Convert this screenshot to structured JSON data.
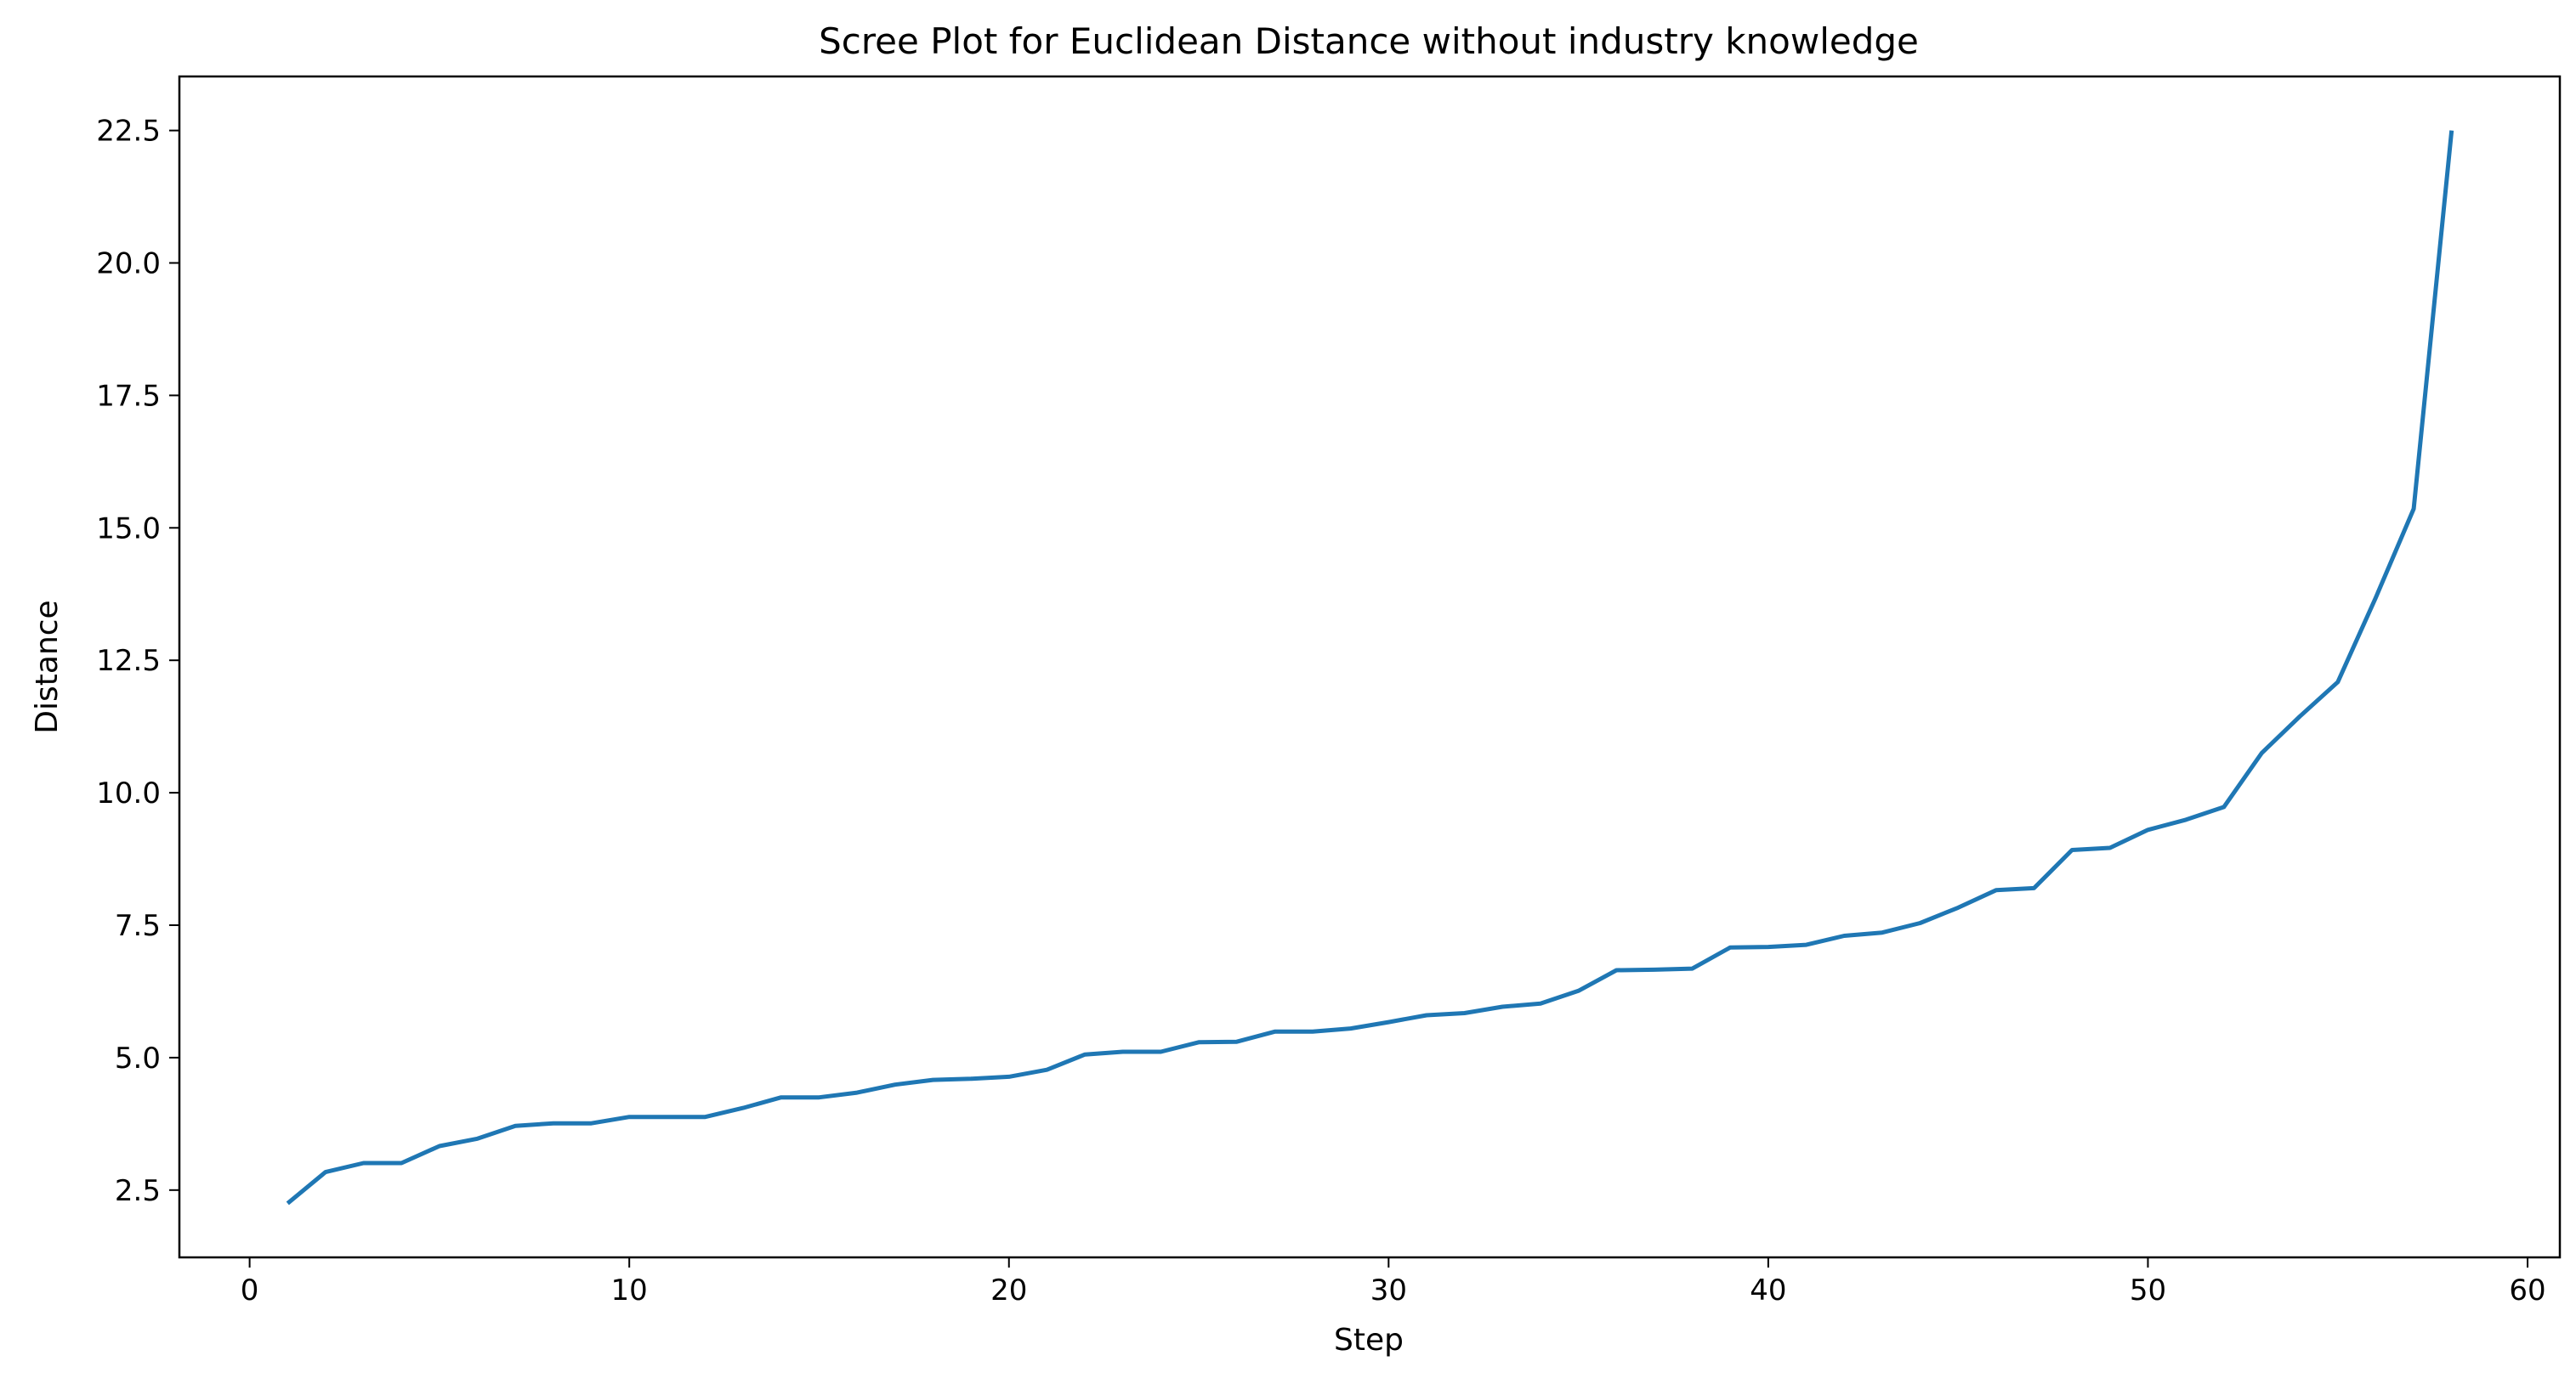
{
  "chart_data": {
    "type": "line",
    "title": "Scree Plot for Euclidean Distance without industry knowledge",
    "xlabel": "Step",
    "ylabel": "Distance",
    "xlim": [
      -1.85,
      60.85
    ],
    "ylim": [
      1.23,
      23.52
    ],
    "xticks": [
      0,
      10,
      20,
      30,
      40,
      50,
      60
    ],
    "xtick_labels": [
      "0",
      "10",
      "20",
      "30",
      "40",
      "50",
      "60"
    ],
    "yticks": [
      2.5,
      5.0,
      7.5,
      10.0,
      12.5,
      15.0,
      17.5,
      20.0,
      22.5
    ],
    "ytick_labels": [
      "2.5",
      "5.0",
      "7.5",
      "10.0",
      "12.5",
      "15.0",
      "17.5",
      "20.0",
      "22.5"
    ],
    "grid": false,
    "line_color": "#1f77b4",
    "series": [
      {
        "x": [
          1,
          2,
          3,
          4,
          5,
          6,
          7,
          8,
          9,
          10,
          11,
          12,
          13,
          14,
          15,
          16,
          17,
          18,
          19,
          20,
          21,
          22,
          23,
          24,
          25,
          26,
          27,
          28,
          29,
          30,
          31,
          32,
          33,
          34,
          35,
          36,
          37,
          38,
          39,
          40,
          41,
          42,
          43,
          44,
          45,
          46,
          47,
          48,
          49,
          50,
          51,
          52,
          53,
          54,
          55,
          56,
          57,
          58
        ],
        "values": [
          2.25,
          2.84,
          3.01,
          3.01,
          3.33,
          3.47,
          3.71,
          3.76,
          3.76,
          3.88,
          3.88,
          3.88,
          4.05,
          4.25,
          4.25,
          4.34,
          4.49,
          4.58,
          4.6,
          4.64,
          4.77,
          5.06,
          5.11,
          5.11,
          5.29,
          5.3,
          5.49,
          5.49,
          5.55,
          5.67,
          5.8,
          5.84,
          5.96,
          6.02,
          6.26,
          6.65,
          6.66,
          6.68,
          7.08,
          7.09,
          7.13,
          7.3,
          7.36,
          7.54,
          7.83,
          8.16,
          8.2,
          8.92,
          8.96,
          9.3,
          9.49,
          9.73,
          10.75,
          11.44,
          12.09,
          13.68,
          15.36,
          22.5
        ]
      }
    ]
  }
}
